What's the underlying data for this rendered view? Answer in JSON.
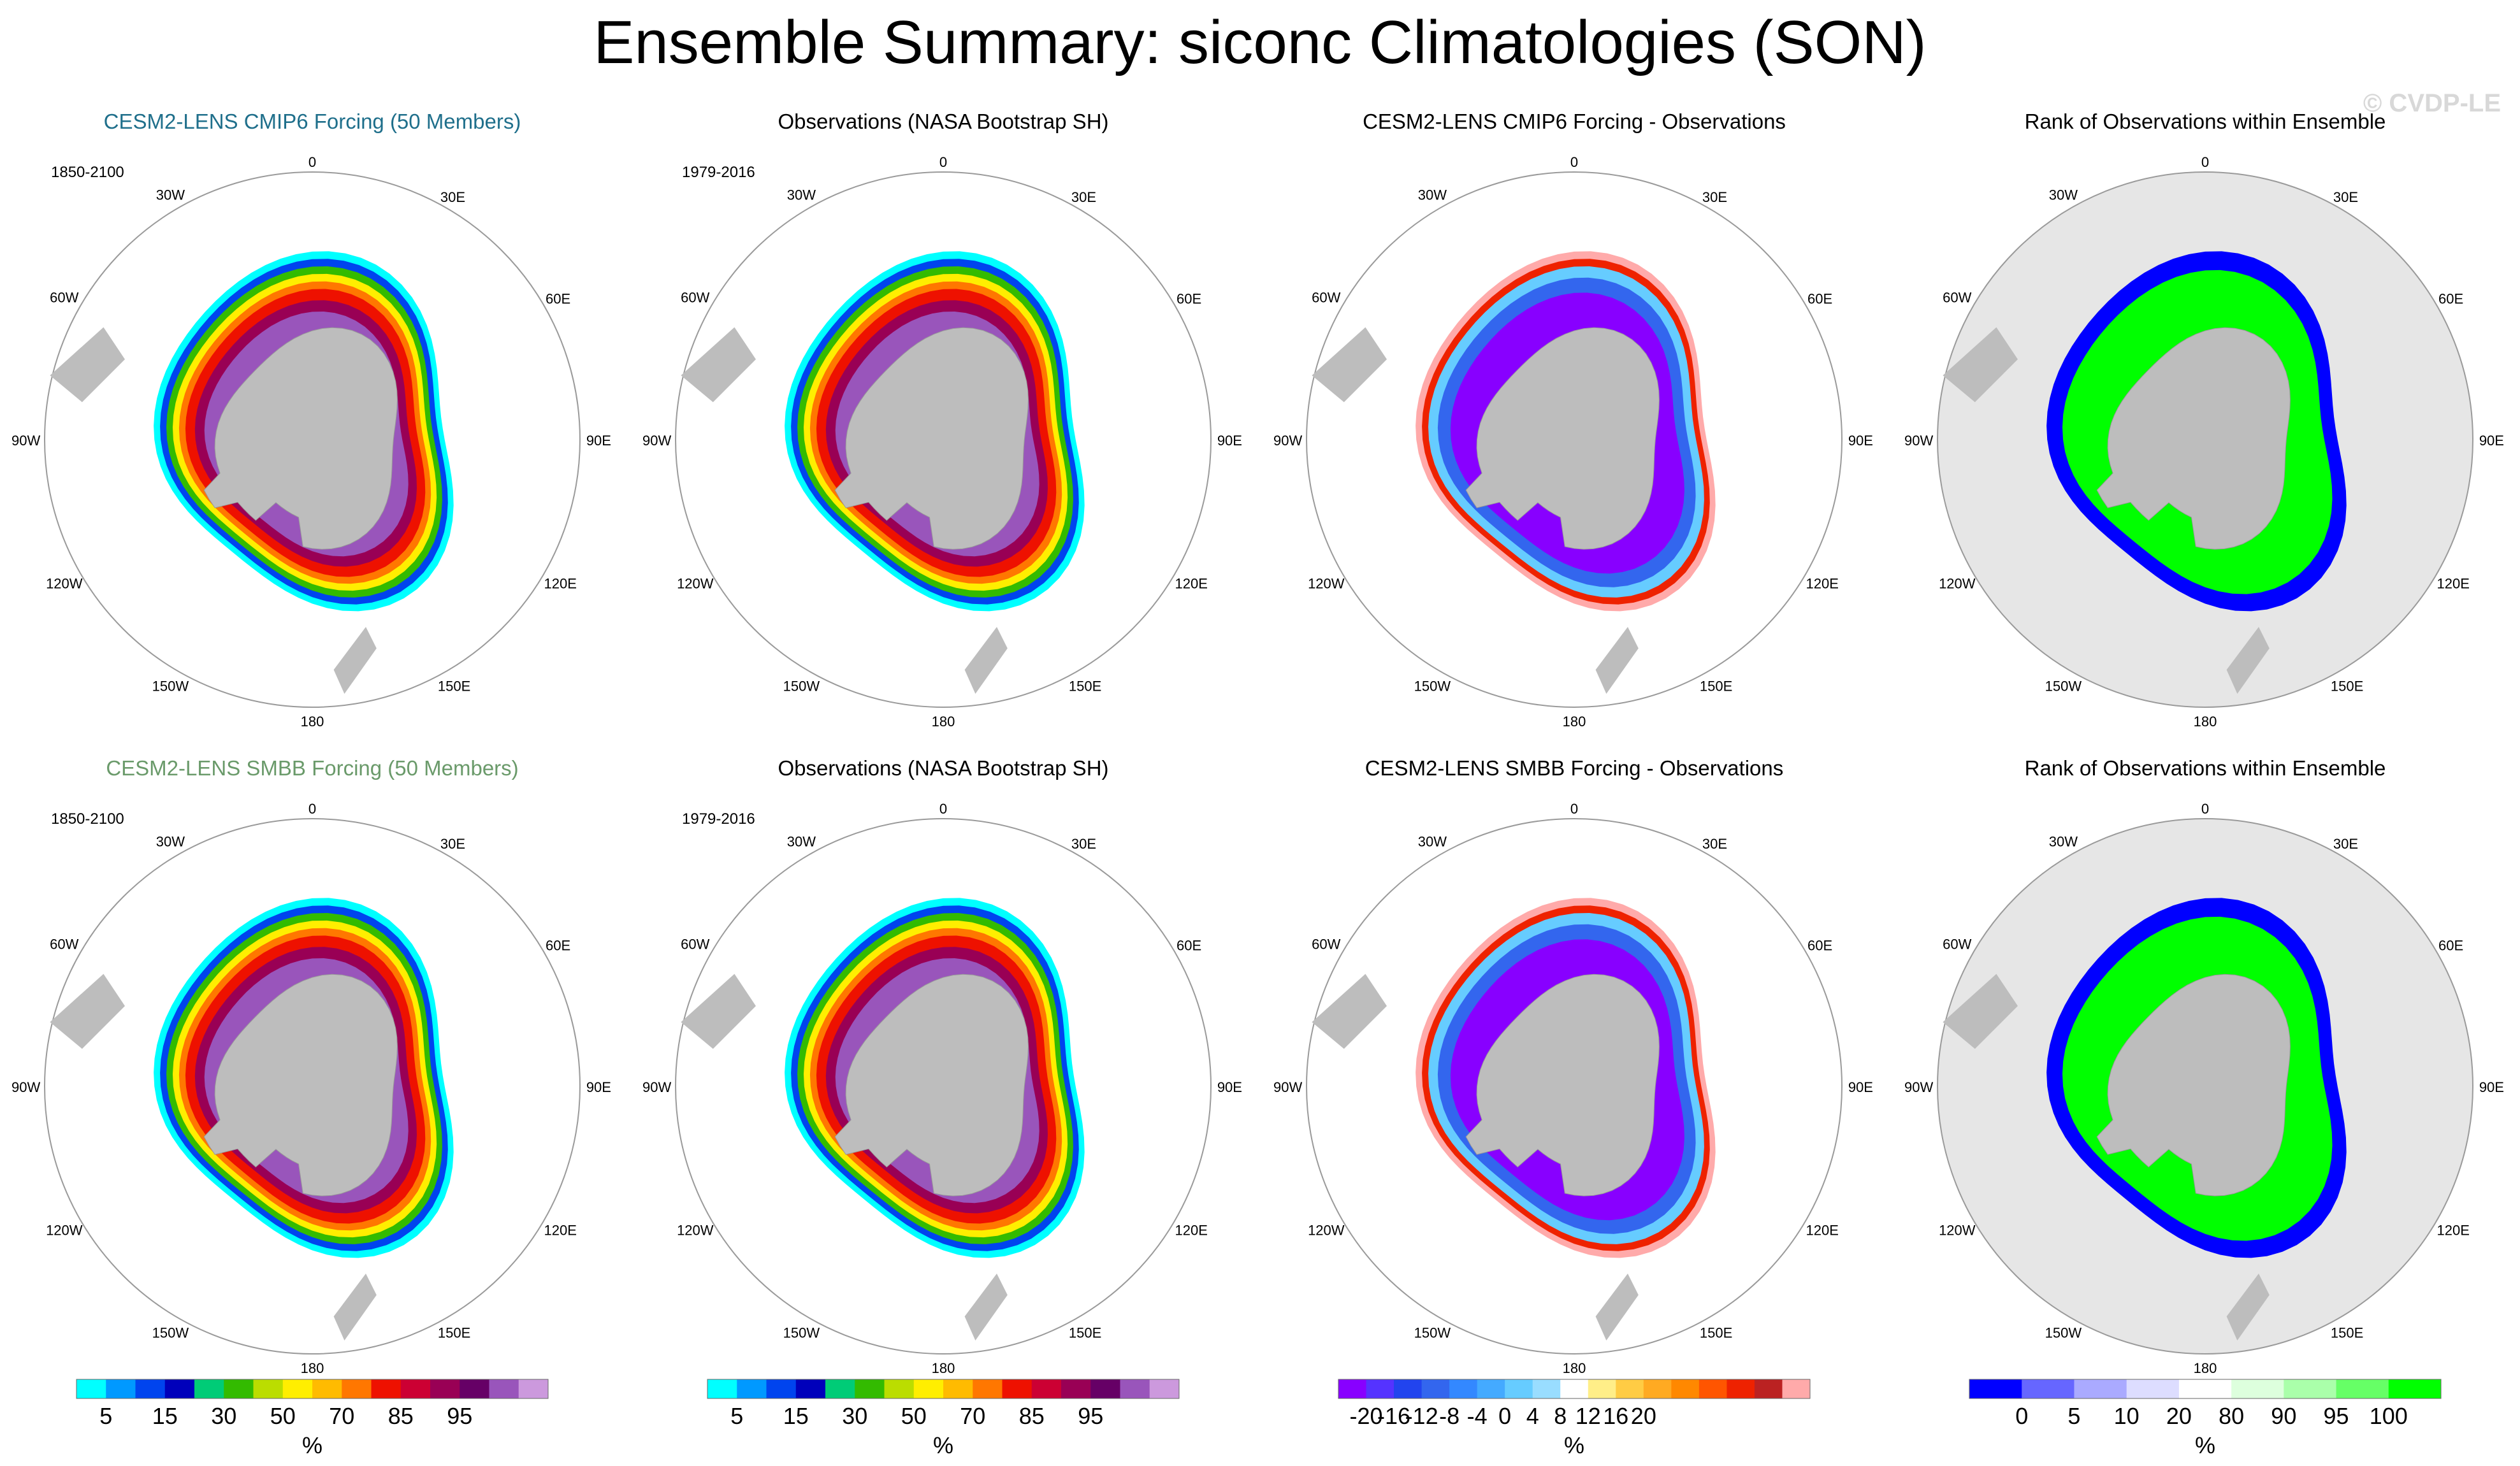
{
  "title": "Ensemble Summary: siconc Climatologies (SON)",
  "watermark": "© CVDP-LE",
  "colors": {
    "land": "#bdbdbd",
    "ocean": "#ffffff",
    "rank_ocean": "#e6e6e6",
    "ring_outline": "#9a9a9a",
    "title_cmip6": "#1f6f8b",
    "title_smbb": "#6a9a6a",
    "title_default": "#000000"
  },
  "map_labels": {
    "top": "0",
    "bottom": "180",
    "left": "90W",
    "right": "90E",
    "upper_left_1": "30W",
    "upper_left_2": "60W",
    "upper_right_1": "30E",
    "upper_right_2": "60E",
    "lower_left_1": "120W",
    "lower_left_2": "150W",
    "lower_right_1": "120E",
    "lower_right_2": "150E"
  },
  "chart_data": [
    {
      "type": "heatmap",
      "panel": "ensemble",
      "title": "CESM2-LENS CMIP6 Forcing (50 Members)",
      "title_color": "cmip6",
      "period": "1850-2100",
      "row": 0,
      "col": 0
    },
    {
      "type": "heatmap",
      "panel": "obs",
      "title": "Observations (NASA Bootstrap SH)",
      "title_color": "default",
      "period": "1979-2016",
      "row": 0,
      "col": 1
    },
    {
      "type": "heatmap",
      "panel": "diff",
      "title": "CESM2-LENS CMIP6 Forcing - Observations",
      "title_color": "default",
      "period": "",
      "row": 0,
      "col": 2
    },
    {
      "type": "heatmap",
      "panel": "rank",
      "title": "Rank of Observations within Ensemble",
      "title_color": "default",
      "period": "",
      "row": 0,
      "col": 3
    },
    {
      "type": "heatmap",
      "panel": "ensemble",
      "title": "CESM2-LENS SMBB Forcing (50 Members)",
      "title_color": "smbb",
      "period": "1850-2100",
      "row": 1,
      "col": 0
    },
    {
      "type": "heatmap",
      "panel": "obs",
      "title": "Observations (NASA Bootstrap SH)",
      "title_color": "default",
      "period": "1979-2016",
      "row": 1,
      "col": 1
    },
    {
      "type": "heatmap",
      "panel": "diff",
      "title": "CESM2-LENS SMBB Forcing - Observations",
      "title_color": "default",
      "period": "",
      "row": 1,
      "col": 2
    },
    {
      "type": "heatmap",
      "panel": "rank",
      "title": "Rank of Observations within Ensemble",
      "title_color": "default",
      "period": "",
      "row": 1,
      "col": 3
    }
  ],
  "colorbars": [
    {
      "unit": "%",
      "colors": [
        "#00ffff",
        "#0099ff",
        "#0044ee",
        "#0000bb",
        "#00cc77",
        "#33bb00",
        "#bbdd00",
        "#ffee00",
        "#ffbb00",
        "#ff7700",
        "#ee1100",
        "#cc0033",
        "#990055",
        "#660066",
        "#9955bb",
        "#cc99dd"
      ],
      "labels": [
        {
          "text": "5",
          "at": 1
        },
        {
          "text": "15",
          "at": 3
        },
        {
          "text": "30",
          "at": 5
        },
        {
          "text": "50",
          "at": 7
        },
        {
          "text": "70",
          "at": 9
        },
        {
          "text": "85",
          "at": 11
        },
        {
          "text": "95",
          "at": 13
        }
      ]
    },
    {
      "unit": "%",
      "colors": [
        "#00ffff",
        "#0099ff",
        "#0044ee",
        "#0000bb",
        "#00cc77",
        "#33bb00",
        "#bbdd00",
        "#ffee00",
        "#ffbb00",
        "#ff7700",
        "#ee1100",
        "#cc0033",
        "#990055",
        "#660066",
        "#9955bb",
        "#cc99dd"
      ],
      "labels": [
        {
          "text": "5",
          "at": 1
        },
        {
          "text": "15",
          "at": 3
        },
        {
          "text": "30",
          "at": 5
        },
        {
          "text": "50",
          "at": 7
        },
        {
          "text": "70",
          "at": 9
        },
        {
          "text": "85",
          "at": 11
        },
        {
          "text": "95",
          "at": 13
        }
      ]
    },
    {
      "unit": "%",
      "colors": [
        "#8800ff",
        "#5533ff",
        "#2244ee",
        "#3366ee",
        "#3388ff",
        "#44aaff",
        "#66ccff",
        "#99ddff",
        "#ffffff",
        "#ffee88",
        "#ffcc44",
        "#ffaa22",
        "#ff8800",
        "#ff5500",
        "#ee2200",
        "#bb2222",
        "#ffaaaa"
      ],
      "labels": [
        {
          "text": "-20",
          "at": 1
        },
        {
          "text": "-16",
          "at": 2
        },
        {
          "text": "-12",
          "at": 3
        },
        {
          "text": "-8",
          "at": 4
        },
        {
          "text": "-4",
          "at": 5
        },
        {
          "text": "0",
          "at": 6
        },
        {
          "text": "4",
          "at": 7
        },
        {
          "text": "8",
          "at": 8
        },
        {
          "text": "12",
          "at": 9
        },
        {
          "text": "16",
          "at": 10
        },
        {
          "text": "20",
          "at": 11
        }
      ]
    },
    {
      "unit": "%",
      "colors": [
        "#0000ff",
        "#6666ff",
        "#aaaaff",
        "#ddddff",
        "#ffffff",
        "#ddffdd",
        "#aaffaa",
        "#66ff66",
        "#00ff00"
      ],
      "labels": [
        {
          "text": "0",
          "at": 1
        },
        {
          "text": "5",
          "at": 2
        },
        {
          "text": "10",
          "at": 3
        },
        {
          "text": "20",
          "at": 4
        },
        {
          "text": "80",
          "at": 5
        },
        {
          "text": "90",
          "at": 6
        },
        {
          "text": "95",
          "at": 7
        },
        {
          "text": "100",
          "at": 8
        }
      ]
    }
  ]
}
